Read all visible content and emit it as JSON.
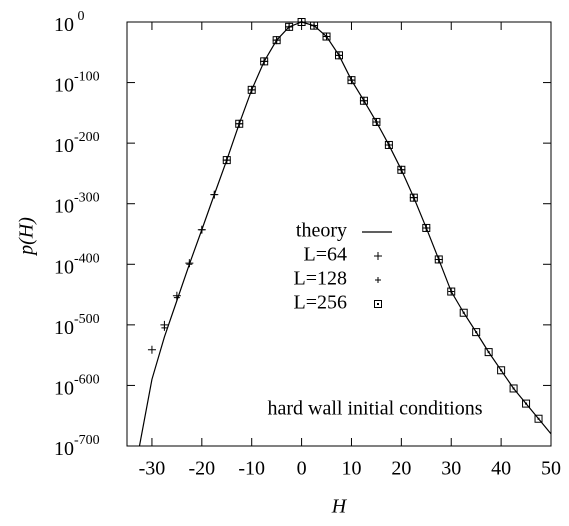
{
  "chart_data": {
    "type": "line",
    "xlabel": "H",
    "ylabel": "p(H)",
    "annotation": "hard wall initial conditions",
    "xlim": [
      -35,
      50
    ],
    "xticks": [
      -30,
      -20,
      -10,
      0,
      10,
      20,
      30,
      40,
      50
    ],
    "log_scale_y": true,
    "ylim": [
      -700,
      0
    ],
    "yticks": [
      {
        "value": 0,
        "label": "10",
        "exponent": " 0"
      },
      {
        "value": -100,
        "label": "10",
        "exponent": "-100"
      },
      {
        "value": -200,
        "label": "10",
        "exponent": "-200"
      },
      {
        "value": -300,
        "label": "10",
        "exponent": "-300"
      },
      {
        "value": -400,
        "label": "10",
        "exponent": "-400"
      },
      {
        "value": -500,
        "label": "10",
        "exponent": "-500"
      },
      {
        "value": -600,
        "label": "10",
        "exponent": "-600"
      },
      {
        "value": -700,
        "label": "10",
        "exponent": "-700"
      }
    ],
    "series": [
      {
        "name": "theory",
        "marker": "line",
        "color": "#000000",
        "x": [
          -32.5,
          -30,
          -27.5,
          -25,
          -22.5,
          -20,
          -17.5,
          -15,
          -12.5,
          -10,
          -7.5,
          -5,
          -2.5,
          0,
          2.5,
          5,
          7.5,
          10,
          12.5,
          15,
          17.5,
          20,
          22.5,
          25,
          27.5,
          30,
          32.5,
          35,
          37.5,
          40,
          42.5,
          45,
          47.5,
          50
        ],
        "values": [
          -700,
          -590,
          -520,
          -460,
          -400,
          -343,
          -285,
          -228,
          -168,
          -112,
          -65,
          -30,
          -8,
          0,
          -6,
          -24,
          -55,
          -96,
          -130,
          -165,
          -203,
          -244,
          -290,
          -340,
          -392,
          -445,
          -480,
          -512,
          -545,
          -575,
          -605,
          -630,
          -655,
          -680
        ]
      },
      {
        "name": "L=64",
        "marker": "plus",
        "color": "#000000",
        "x": [
          -30,
          -27.5,
          -25,
          -22.5,
          -20,
          -17.5,
          -15,
          -12.5,
          -10,
          -7.5,
          -5,
          -2.5,
          0,
          2.5,
          5,
          7.5,
          10,
          12.5,
          15,
          17.5,
          20,
          22.5,
          25,
          27.5
        ],
        "values": [
          -541,
          -500,
          -452,
          -398,
          -343,
          -285,
          -228,
          -168,
          -112,
          -65,
          -30,
          -8,
          0,
          -6,
          -24,
          -55,
          -96,
          -130,
          -165,
          -203,
          -244,
          -290,
          -340,
          -392
        ]
      },
      {
        "name": "L=128",
        "marker": "plus-small",
        "color": "#000000",
        "x": [
          -27.5,
          -25,
          -22.5,
          -20,
          -17.5,
          -15,
          -12.5,
          -10,
          -7.5,
          -5,
          -2.5,
          0,
          2.5,
          5,
          7.5,
          10,
          12.5,
          15,
          17.5,
          20,
          22.5,
          25,
          27.5,
          30
        ],
        "values": [
          -505,
          -455,
          -400,
          -343,
          -285,
          -228,
          -168,
          -112,
          -65,
          -30,
          -8,
          0,
          -6,
          -24,
          -55,
          -96,
          -130,
          -165,
          -203,
          -244,
          -290,
          -340,
          -392,
          -445
        ]
      },
      {
        "name": "L=256",
        "marker": "square",
        "color": "#000000",
        "x": [
          -15,
          -12.5,
          -10,
          -7.5,
          -5,
          -2.5,
          0,
          2.5,
          5,
          7.5,
          10,
          12.5,
          15,
          17.5,
          20,
          22.5,
          25,
          27.5,
          30,
          32.5,
          35,
          37.5,
          40,
          42.5,
          45,
          47.5
        ],
        "values": [
          -228,
          -168,
          -112,
          -65,
          -30,
          -8,
          0,
          -6,
          -24,
          -55,
          -96,
          -130,
          -165,
          -203,
          -244,
          -290,
          -340,
          -392,
          -445,
          -480,
          -512,
          -545,
          -575,
          -605,
          -630,
          -655
        ]
      }
    ]
  }
}
